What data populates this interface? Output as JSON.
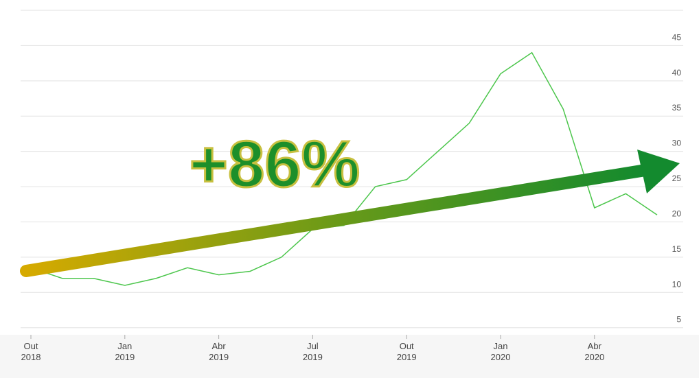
{
  "chart_data": {
    "type": "line",
    "x": [
      "2018-10",
      "2018-11",
      "2018-12",
      "2019-01",
      "2019-02",
      "2019-03",
      "2019-04",
      "2019-05",
      "2019-06",
      "2019-07",
      "2019-08",
      "2019-09",
      "2019-10",
      "2019-11",
      "2019-12",
      "2020-01",
      "2020-02",
      "2020-03",
      "2020-04",
      "2020-05",
      "2020-06"
    ],
    "series": [
      {
        "color": "#4cc64c",
        "values": [
          13.5,
          12,
          12,
          11,
          12,
          13.5,
          12.5,
          13,
          15,
          19,
          19.5,
          25,
          26,
          30,
          34,
          41,
          44,
          36,
          22,
          24,
          21
        ]
      }
    ],
    "ylim": [
      4,
      50
    ],
    "yticks": [
      5,
      10,
      15,
      20,
      25,
      30,
      35,
      40,
      45
    ],
    "grid": true,
    "xticks": [
      {
        "value": "2018-10",
        "label": "Out\n2018"
      },
      {
        "value": "2019-01",
        "label": "Jan\n2019"
      },
      {
        "value": "2019-04",
        "label": "Abr\n2019"
      },
      {
        "value": "2019-07",
        "label": "Jul\n2019"
      },
      {
        "value": "2019-10",
        "label": "Out\n2019"
      },
      {
        "value": "2020-01",
        "label": "Jan\n2020"
      },
      {
        "value": "2020-04",
        "label": "Abr\n2020"
      }
    ],
    "annotation": "+86%"
  }
}
